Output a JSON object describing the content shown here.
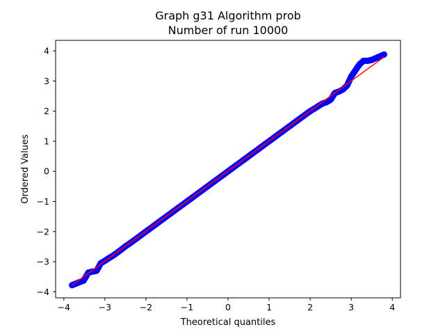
{
  "chart_data": {
    "type": "scatter",
    "title": "Graph g31 Algorithm prob",
    "subtitle": "Number of run 10000",
    "xlabel": "Theoretical quantiles",
    "ylabel": "Ordered Values",
    "xlim": [
      -4.2,
      4.2
    ],
    "ylim": [
      -4.2,
      4.35
    ],
    "xticks": [
      -4,
      -3,
      -2,
      -1,
      0,
      1,
      2,
      3,
      4
    ],
    "yticks": [
      -4,
      -3,
      -2,
      -1,
      0,
      1,
      2,
      3,
      4
    ],
    "xtick_labels": [
      "−4",
      "−3",
      "−2",
      "−1",
      "0",
      "1",
      "2",
      "3",
      "4"
    ],
    "ytick_labels": [
      "−4",
      "−3",
      "−2",
      "−1",
      "0",
      "1",
      "2",
      "3",
      "4"
    ],
    "grid": false,
    "series": [
      {
        "kind": "points",
        "color": "#0000ff",
        "points": [
          [
            -3.8,
            -3.78
          ],
          [
            -3.6,
            -3.67
          ],
          [
            -3.52,
            -3.63
          ],
          [
            -3.4,
            -3.36
          ],
          [
            -3.3,
            -3.33
          ],
          [
            -3.2,
            -3.3
          ],
          [
            -3.1,
            -3.05
          ],
          [
            -3.0,
            -2.97
          ],
          [
            -2.9,
            -2.88
          ],
          [
            -2.8,
            -2.8
          ],
          [
            -2.7,
            -2.7
          ],
          [
            -2.6,
            -2.6
          ],
          [
            -2.5,
            -2.49
          ],
          [
            -2.4,
            -2.4
          ],
          [
            -2.3,
            -2.3
          ],
          [
            -2.2,
            -2.2
          ],
          [
            -2.1,
            -2.1
          ],
          [
            -2.0,
            -2.0
          ],
          [
            -1.9,
            -1.9
          ],
          [
            -1.8,
            -1.8
          ],
          [
            -1.7,
            -1.7
          ],
          [
            -1.6,
            -1.6
          ],
          [
            -1.5,
            -1.5
          ],
          [
            -1.4,
            -1.4
          ],
          [
            -1.3,
            -1.3
          ],
          [
            -1.2,
            -1.2
          ],
          [
            -1.1,
            -1.1
          ],
          [
            -1.0,
            -1.0
          ],
          [
            -0.9,
            -0.9
          ],
          [
            -0.8,
            -0.8
          ],
          [
            -0.7,
            -0.7
          ],
          [
            -0.6,
            -0.6
          ],
          [
            -0.5,
            -0.5
          ],
          [
            -0.4,
            -0.4
          ],
          [
            -0.3,
            -0.3
          ],
          [
            -0.2,
            -0.2
          ],
          [
            -0.1,
            -0.1
          ],
          [
            0.0,
            0.0
          ],
          [
            0.1,
            0.1
          ],
          [
            0.2,
            0.2
          ],
          [
            0.3,
            0.3
          ],
          [
            0.4,
            0.4
          ],
          [
            0.5,
            0.5
          ],
          [
            0.6,
            0.6
          ],
          [
            0.7,
            0.7
          ],
          [
            0.8,
            0.8
          ],
          [
            0.9,
            0.9
          ],
          [
            1.0,
            1.0
          ],
          [
            1.1,
            1.1
          ],
          [
            1.2,
            1.2
          ],
          [
            1.3,
            1.3
          ],
          [
            1.4,
            1.4
          ],
          [
            1.5,
            1.5
          ],
          [
            1.6,
            1.6
          ],
          [
            1.7,
            1.7
          ],
          [
            1.8,
            1.8
          ],
          [
            1.9,
            1.9
          ],
          [
            2.0,
            2.0
          ],
          [
            2.1,
            2.08
          ],
          [
            2.2,
            2.17
          ],
          [
            2.3,
            2.25
          ],
          [
            2.4,
            2.3
          ],
          [
            2.5,
            2.38
          ],
          [
            2.6,
            2.6
          ],
          [
            2.7,
            2.65
          ],
          [
            2.8,
            2.72
          ],
          [
            2.9,
            2.85
          ],
          [
            2.95,
            3.0
          ],
          [
            3.0,
            3.15
          ],
          [
            3.1,
            3.35
          ],
          [
            3.15,
            3.45
          ],
          [
            3.2,
            3.55
          ],
          [
            3.3,
            3.67
          ],
          [
            3.4,
            3.67
          ],
          [
            3.5,
            3.7
          ],
          [
            3.8,
            3.88
          ]
        ]
      },
      {
        "kind": "line",
        "color": "#ff0000",
        "points": [
          [
            -3.8,
            -3.78
          ],
          [
            3.8,
            3.8
          ]
        ]
      }
    ]
  }
}
